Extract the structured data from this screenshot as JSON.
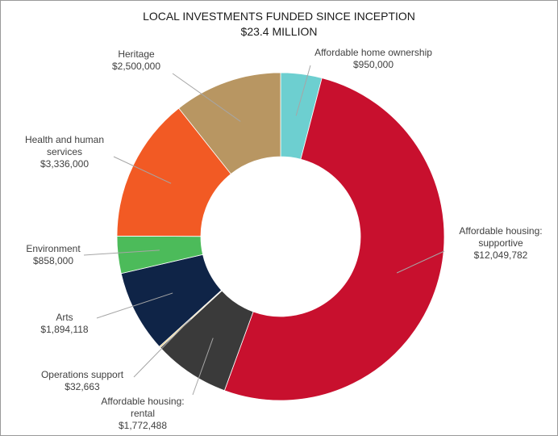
{
  "chart_data": {
    "type": "pie",
    "title": "LOCAL INVESTMENTS FUNDED SINCE INCEPTION",
    "subtitle": "$23.4 MILLION",
    "slices": [
      {
        "category": "Affordable home ownership",
        "value": 950000,
        "label_lines": [
          "Affordable home ownership",
          "$950,000"
        ],
        "color": "#6dcfd0"
      },
      {
        "category": "Affordable housing: supportive",
        "value": 12049782,
        "label_lines": [
          "Affordable housing:",
          "supportive",
          "$12,049,782"
        ],
        "color": "#c8102e"
      },
      {
        "category": "Affordable housing: rental",
        "value": 1772488,
        "label_lines": [
          "Affordable housing:",
          "rental",
          "$1,772,488"
        ],
        "color": "#3a3a3a"
      },
      {
        "category": "Operations support",
        "value": 32663,
        "label_lines": [
          "Operations support",
          "$32,663"
        ],
        "color": "#e3c26a"
      },
      {
        "category": "Arts",
        "value": 1894118,
        "label_lines": [
          "Arts",
          "$1,894,118"
        ],
        "color": "#0f2447"
      },
      {
        "category": "Environment",
        "value": 858000,
        "label_lines": [
          "Environment",
          "$858,000"
        ],
        "color": "#4cbb5a"
      },
      {
        "category": "Health and human services",
        "value": 3336000,
        "label_lines": [
          "Health and human",
          "services",
          "$3,336,000"
        ],
        "color": "#f25a24"
      },
      {
        "category": "Heritage",
        "value": 2500000,
        "label_lines": [
          "Heritage",
          "$2,500,000"
        ],
        "color": "#b89662"
      }
    ],
    "donut": true
  }
}
